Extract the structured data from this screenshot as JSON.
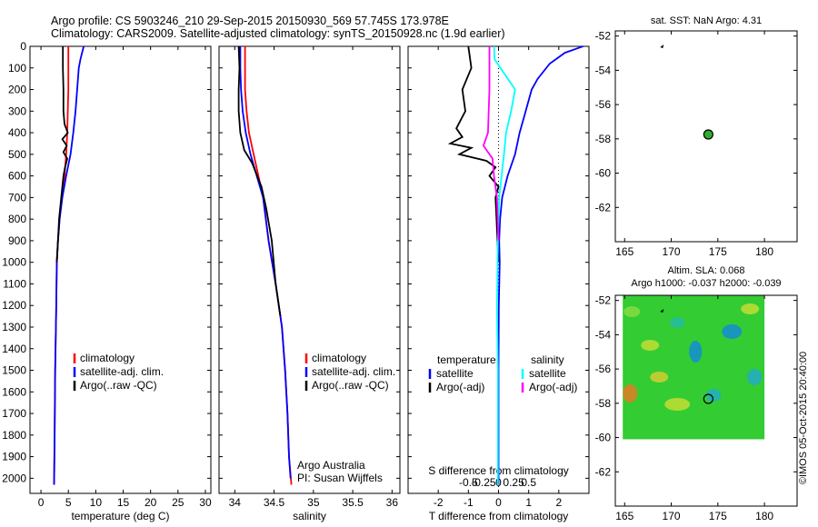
{
  "header": {
    "line1": "Argo profile: CS 5903246_210 29-Sep-2015 20150930_569 57.745S 173.978E",
    "line2": "Climatology: CARS2009. Satellite-adjusted climatology: synTS_20150928.nc (1.9d earlier)"
  },
  "credit": "©IMOS 05-Oct-2015 20:40:00",
  "colors": {
    "climatology": "#ff0000",
    "satellite": "#0000ff",
    "argo": "#000000",
    "sal_satellite": "#00ffff",
    "sal_argo": "#ff00ff",
    "float_marker": "#33aa33"
  },
  "chart_data": [
    {
      "id": "temperature",
      "type": "line",
      "xlabel": "temperature (deg C)",
      "ylabel": "",
      "xlim": [
        -2,
        31
      ],
      "ylim": [
        2070,
        0
      ],
      "xticks": [
        0,
        5,
        10,
        15,
        20,
        25,
        30
      ],
      "yticks": [
        0,
        100,
        200,
        300,
        400,
        500,
        600,
        700,
        800,
        900,
        1000,
        1100,
        1200,
        1300,
        1400,
        1500,
        1600,
        1700,
        1800,
        1900,
        2000
      ],
      "legend": [
        "climatology",
        "satellite-adj. clim.",
        "Argo(..raw -QC)"
      ],
      "series": [
        {
          "name": "climatology",
          "color": "#ff0000",
          "points": [
            [
              5.0,
              0
            ],
            [
              5.0,
              200
            ],
            [
              4.8,
              400
            ],
            [
              4.6,
              500
            ],
            [
              4.3,
              600
            ],
            [
              3.8,
              700
            ],
            [
              3.4,
              800
            ],
            [
              3.1,
              900
            ],
            [
              2.9,
              1000
            ],
            [
              2.8,
              1200
            ],
            [
              2.6,
              1500
            ],
            [
              2.5,
              1800
            ],
            [
              2.4,
              2030
            ]
          ]
        },
        {
          "name": "satellite-adj. clim.",
          "color": "#0000ff",
          "points": [
            [
              7.8,
              0
            ],
            [
              7.5,
              30
            ],
            [
              7.2,
              60
            ],
            [
              6.9,
              100
            ],
            [
              6.6,
              200
            ],
            [
              6.3,
              300
            ],
            [
              5.9,
              400
            ],
            [
              5.4,
              500
            ],
            [
              4.6,
              600
            ],
            [
              3.9,
              700
            ],
            [
              3.4,
              800
            ],
            [
              3.1,
              900
            ],
            [
              2.9,
              1000
            ],
            [
              2.8,
              1200
            ],
            [
              2.6,
              1500
            ],
            [
              2.5,
              1800
            ],
            [
              2.4,
              2030
            ]
          ]
        },
        {
          "name": "Argo(..raw -QC)",
          "color": "#000000",
          "points": [
            [
              4.0,
              0
            ],
            [
              4.0,
              100
            ],
            [
              4.1,
              200
            ],
            [
              4.1,
              300
            ],
            [
              4.3,
              360
            ],
            [
              4.9,
              400
            ],
            [
              3.9,
              430
            ],
            [
              4.7,
              460
            ],
            [
              4.1,
              490
            ],
            [
              4.8,
              520
            ],
            [
              4.4,
              560
            ],
            [
              4.1,
              600
            ],
            [
              3.7,
              700
            ],
            [
              3.3,
              800
            ],
            [
              3.1,
              900
            ],
            [
              2.9,
              1000
            ]
          ]
        }
      ]
    },
    {
      "id": "salinity",
      "type": "line",
      "xlabel": "salinity",
      "ylabel": "",
      "xlim": [
        33.8,
        36.1
      ],
      "ylim": [
        2070,
        0
      ],
      "xticks": [
        34,
        34.5,
        35,
        35.5,
        36
      ],
      "legend": [
        "climatology",
        "satellite-adj. clim.",
        "Argo(..raw -QC)"
      ],
      "annotation": [
        "Argo Australia",
        "PI: Susan Wijffels"
      ],
      "series": [
        {
          "name": "climatology",
          "color": "#ff0000",
          "points": [
            [
              34.13,
              0
            ],
            [
              34.13,
              200
            ],
            [
              34.15,
              300
            ],
            [
              34.18,
              400
            ],
            [
              34.24,
              500
            ],
            [
              34.3,
              600
            ],
            [
              34.36,
              700
            ],
            [
              34.43,
              900
            ],
            [
              34.52,
              1100
            ],
            [
              34.6,
              1300
            ],
            [
              34.64,
              1500
            ],
            [
              34.67,
              1700
            ],
            [
              34.69,
              1900
            ],
            [
              34.72,
              2030
            ]
          ]
        },
        {
          "name": "satellite-adj. clim.",
          "color": "#0000ff",
          "points": [
            [
              34.07,
              0
            ],
            [
              34.07,
              100
            ],
            [
              34.08,
              200
            ],
            [
              34.1,
              300
            ],
            [
              34.14,
              400
            ],
            [
              34.2,
              500
            ],
            [
              34.28,
              600
            ],
            [
              34.36,
              700
            ],
            [
              34.43,
              900
            ],
            [
              34.52,
              1100
            ],
            [
              34.6,
              1300
            ],
            [
              34.64,
              1500
            ],
            [
              34.67,
              1700
            ],
            [
              34.69,
              1900
            ],
            [
              34.71,
              2000
            ]
          ]
        },
        {
          "name": "Argo(..raw -QC)",
          "color": "#000000",
          "points": [
            [
              34.05,
              0
            ],
            [
              34.06,
              100
            ],
            [
              34.05,
              200
            ],
            [
              34.05,
              300
            ],
            [
              34.07,
              400
            ],
            [
              34.12,
              480
            ],
            [
              34.22,
              540
            ],
            [
              34.34,
              650
            ],
            [
              34.4,
              750
            ],
            [
              34.47,
              900
            ],
            [
              34.52,
              1100
            ],
            [
              34.58,
              1250
            ]
          ]
        }
      ]
    },
    {
      "id": "difference",
      "type": "line",
      "xlabel": "T difference from climatology",
      "ylabel": "",
      "title_bottom": "S difference from climatology",
      "xlim": [
        -3,
        3
      ],
      "ylim": [
        2070,
        0
      ],
      "xticks": [
        -2,
        -1,
        0,
        1,
        2
      ],
      "sticks": [
        "-0.5",
        "-0.25",
        "0",
        "0.25",
        "0.5"
      ],
      "legend_t": [
        "temperature",
        "satellite",
        "Argo(-adj)"
      ],
      "legend_s": [
        "salinity",
        "satellite",
        "Argo(-adj)"
      ],
      "series": [
        {
          "name": "satellite",
          "color": "#0000ff",
          "points": [
            [
              2.8,
              0
            ],
            [
              2.2,
              30
            ],
            [
              1.7,
              80
            ],
            [
              1.3,
              150
            ],
            [
              1.1,
              200
            ],
            [
              0.9,
              300
            ],
            [
              0.7,
              400
            ],
            [
              0.55,
              500
            ],
            [
              0.3,
              600
            ],
            [
              0.12,
              700
            ],
            [
              0.05,
              800
            ],
            [
              0.02,
              900
            ],
            [
              0.04,
              1000
            ],
            [
              0.01,
              1200
            ],
            [
              0,
              1500
            ],
            [
              0,
              2030
            ]
          ]
        },
        {
          "name": "Argo(-adj)",
          "color": "#000000",
          "points": [
            [
              -1.0,
              0
            ],
            [
              -0.9,
              100
            ],
            [
              -1.2,
              200
            ],
            [
              -1.1,
              300
            ],
            [
              -1.4,
              380
            ],
            [
              -1.2,
              420
            ],
            [
              -1.6,
              450
            ],
            [
              -0.9,
              470
            ],
            [
              -1.3,
              500
            ],
            [
              -0.4,
              530
            ],
            [
              -0.1,
              560
            ],
            [
              -0.3,
              600
            ],
            [
              0,
              650
            ],
            [
              -0.1,
              700
            ],
            [
              0,
              1000
            ]
          ]
        },
        {
          "name": "salinity satellite",
          "color": "#00ffff",
          "points": [
            [
              -0.15,
              0
            ],
            [
              -0.13,
              60
            ],
            [
              0.55,
              200
            ],
            [
              0.42,
              300
            ],
            [
              0.25,
              400
            ],
            [
              0.18,
              500
            ],
            [
              0.02,
              700
            ],
            [
              -0.02,
              900
            ],
            [
              -0.04,
              1100
            ],
            [
              -0.05,
              1200
            ],
            [
              -0.02,
              1500
            ],
            [
              -0.02,
              2030
            ]
          ]
        },
        {
          "name": "salinity Argo(-adj)",
          "color": "#ff00ff",
          "points": [
            [
              -0.3,
              0
            ],
            [
              -0.3,
              200
            ],
            [
              -0.35,
              400
            ],
            [
              -0.5,
              460
            ],
            [
              -0.2,
              520
            ],
            [
              -0.15,
              600
            ],
            [
              -0.05,
              700
            ],
            [
              0,
              900
            ]
          ]
        }
      ]
    }
  ],
  "maps": {
    "top": {
      "title": "sat. SST: NaN Argo: 4.31",
      "xticks": [
        165,
        170,
        175,
        180
      ],
      "yticks": [
        -52,
        -54,
        -56,
        -58,
        -60,
        -62
      ],
      "xlim": [
        164,
        183.5
      ],
      "ylim": [
        -64,
        -51.7
      ],
      "float": [
        173.978,
        -57.745
      ],
      "prev": [
        169.0,
        -52.6
      ]
    },
    "bottom": {
      "title1": "Altim. SLA: 0.068",
      "title2": "Argo h1000: -0.037 h2000: -0.039",
      "xticks": [
        165,
        170,
        175,
        180
      ],
      "yticks": [
        -52,
        -54,
        -56,
        -58,
        -60,
        -62
      ],
      "xlim": [
        164,
        183.5
      ],
      "ylim": [
        -64,
        -51.7
      ],
      "field_lon": [
        164.8,
        180
      ],
      "field_lat": [
        -60.1,
        -51.7
      ],
      "float": [
        173.978,
        -57.745
      ],
      "prev": [
        169.0,
        -52.6
      ]
    }
  }
}
